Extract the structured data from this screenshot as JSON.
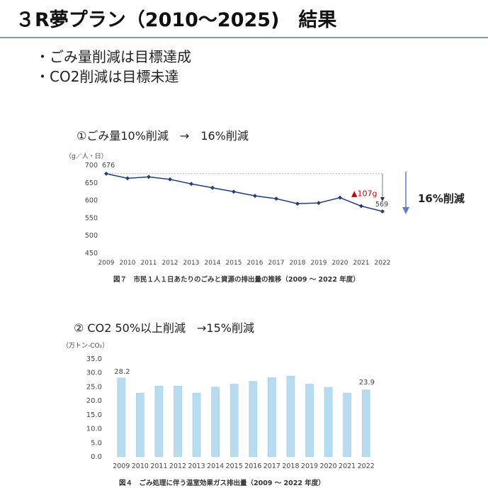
{
  "slide": {
    "title": "３R夢プラン（2010～2025)　結果",
    "bullets": [
      "・ごみ量削減は目標達成",
      "・CO2削減は目標未達"
    ]
  },
  "chart_data": [
    {
      "type": "line",
      "heading": "①ごみ量10%削減　→　16%削減",
      "unit_label": "（g／人・日）",
      "categories": [
        "2009",
        "2010",
        "2011",
        "2012",
        "2013",
        "2014",
        "2015",
        "2016",
        "2017",
        "2018",
        "2019",
        "2020",
        "2021",
        "2022"
      ],
      "values": [
        676,
        663,
        667,
        660,
        647,
        636,
        625,
        613,
        605,
        591,
        593,
        608,
        584,
        569
      ],
      "ylim": [
        450,
        700
      ],
      "yticks": [
        450,
        500,
        550,
        600,
        650,
        700
      ],
      "labels": {
        "first": "676",
        "last": "569"
      },
      "annotation": "▲107g",
      "side_note": "16%削減",
      "caption": "図７　市民１人１日あたりのごみと資源の排出量の推移（2009 ～ 2022 年度）",
      "color": "#1f3f7f"
    },
    {
      "type": "bar",
      "heading": "② CO2  50%以上削減　→15%削減",
      "unit_label": "（万トン-CO₂）",
      "categories": [
        "2009",
        "2010",
        "2011",
        "2012",
        "2013",
        "2014",
        "2015",
        "2016",
        "2017",
        "2018",
        "2019",
        "2020",
        "2021",
        "2022"
      ],
      "values": [
        28.2,
        22.8,
        25.3,
        25.3,
        22.8,
        24.9,
        26.0,
        27.0,
        28.3,
        28.9,
        26.0,
        24.8,
        22.8,
        23.9
      ],
      "ylim": [
        0,
        35
      ],
      "yticks": [
        "0.0",
        "5.0",
        "10.0",
        "15.0",
        "20.0",
        "25.0",
        "30.0",
        "35.0"
      ],
      "labels": {
        "first": "28.2",
        "last": "23.9"
      },
      "caption": "図４　ごみ処理に伴う温室効果ガス排出量（2009 ～ 2022 年度）",
      "color": "#b7dcf0"
    }
  ]
}
